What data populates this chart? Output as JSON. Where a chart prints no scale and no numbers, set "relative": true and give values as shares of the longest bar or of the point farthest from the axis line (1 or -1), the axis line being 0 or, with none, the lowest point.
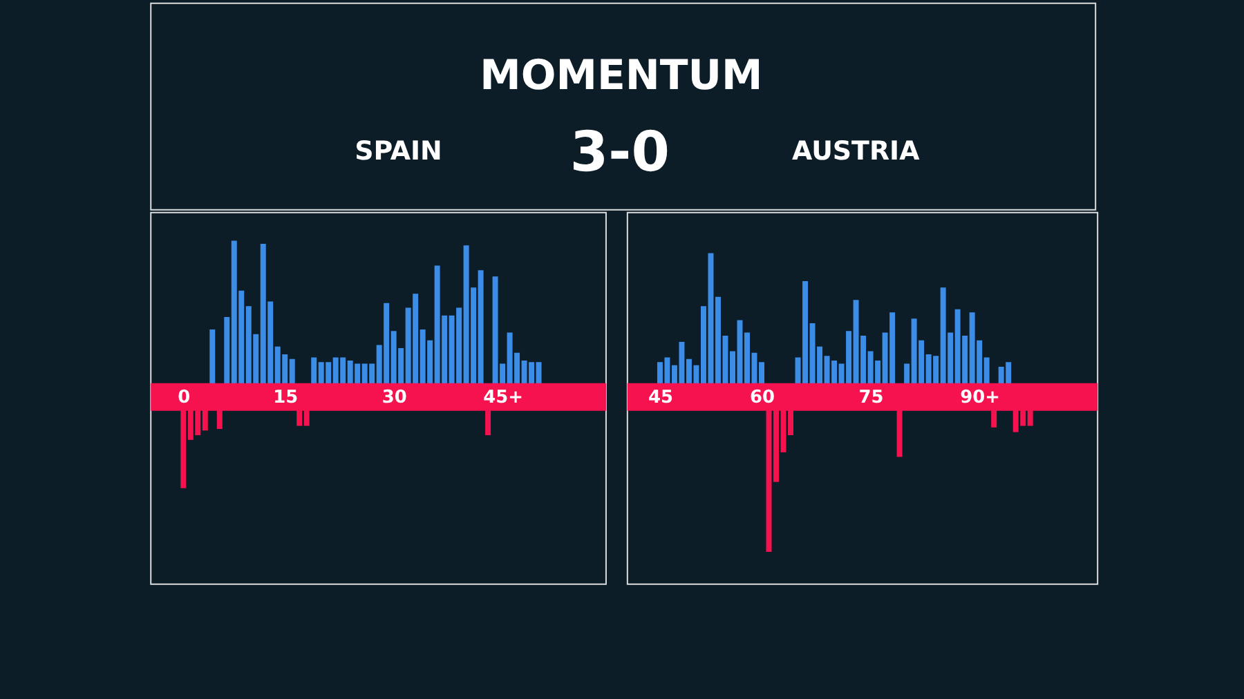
{
  "chart_data": [
    {
      "type": "bar",
      "title": "MOMENTUM",
      "annotations": [
        "SPAIN",
        "3-0",
        "AUSTRIA"
      ],
      "relative": true,
      "categories": [
        "0",
        null,
        null,
        null,
        null,
        null,
        null,
        null,
        null,
        null,
        null,
        null,
        null,
        null,
        "15",
        null,
        null,
        null,
        null,
        null,
        null,
        null,
        null,
        null,
        null,
        null,
        null,
        null,
        null,
        "30",
        null,
        null,
        null,
        null,
        null,
        null,
        null,
        null,
        null,
        null,
        null,
        null,
        null,
        null,
        "45+",
        null,
        null,
        null,
        null,
        null
      ],
      "series": [
        {
          "color": "#3b8de8",
          "values": [
            null,
            null,
            null,
            null,
            0.43,
            null,
            0.51,
            1,
            0.68,
            0.58,
            0.4,
            0.98,
            0.61,
            0.32,
            0.27,
            0.24,
            null,
            null,
            0.25,
            0.22,
            0.22,
            0.25,
            0.25,
            0.23,
            0.21,
            0.21,
            0.21,
            0.33,
            0.6,
            0.42,
            0.31,
            0.57,
            0.66,
            0.43,
            0.36,
            0.84,
            0.52,
            0.52,
            0.57,
            0.97,
            0.7,
            0.81,
            null,
            0.77,
            0.21,
            0.41,
            0.28,
            0.23,
            0.22,
            0.22
          ]
        },
        {
          "color": "#f5124f",
          "values": [
            -0.59,
            -0.28,
            -0.25,
            -0.22,
            null,
            -0.21,
            null,
            null,
            null,
            null,
            null,
            null,
            null,
            null,
            null,
            null,
            -0.19,
            -0.19,
            null,
            null,
            null,
            null,
            null,
            null,
            null,
            null,
            null,
            null,
            null,
            null,
            null,
            null,
            null,
            null,
            null,
            null,
            null,
            null,
            null,
            null,
            null,
            null,
            -0.25,
            null,
            null,
            null,
            null,
            null,
            null,
            null
          ]
        }
      ]
    },
    {
      "type": "bar",
      "relative": true,
      "categories": [
        "45",
        null,
        null,
        null,
        null,
        null,
        null,
        null,
        null,
        null,
        null,
        null,
        null,
        null,
        "60",
        null,
        null,
        null,
        null,
        null,
        null,
        null,
        null,
        null,
        null,
        null,
        null,
        null,
        null,
        "75",
        null,
        null,
        null,
        null,
        null,
        null,
        null,
        null,
        null,
        null,
        null,
        null,
        null,
        null,
        "90+",
        null,
        null,
        null,
        null,
        null,
        null,
        null
      ],
      "series": [
        {
          "color": "#3b8de8",
          "values": [
            0.22,
            0.25,
            0.2,
            0.35,
            0.24,
            0.2,
            0.58,
            0.92,
            0.64,
            0.39,
            0.29,
            0.49,
            0.41,
            0.28,
            0.22,
            null,
            null,
            null,
            null,
            0.25,
            0.74,
            0.47,
            0.32,
            0.26,
            0.23,
            0.21,
            0.42,
            0.62,
            0.39,
            0.29,
            0.23,
            0.41,
            0.54,
            null,
            0.21,
            0.5,
            0.36,
            0.27,
            0.26,
            0.7,
            0.41,
            0.56,
            0.39,
            0.54,
            0.36,
            0.25,
            null,
            0.19,
            0.22,
            null,
            null,
            null
          ]
        },
        {
          "color": "#f5124f",
          "values": [
            null,
            null,
            null,
            null,
            null,
            null,
            null,
            null,
            null,
            null,
            null,
            null,
            null,
            null,
            null,
            -1,
            -0.55,
            -0.36,
            -0.25,
            null,
            null,
            null,
            null,
            null,
            null,
            null,
            null,
            null,
            null,
            null,
            null,
            null,
            null,
            -0.39,
            null,
            null,
            null,
            null,
            null,
            null,
            null,
            null,
            null,
            null,
            null,
            null,
            -0.2,
            null,
            null,
            -0.23,
            -0.19,
            -0.19
          ]
        }
      ]
    }
  ]
}
